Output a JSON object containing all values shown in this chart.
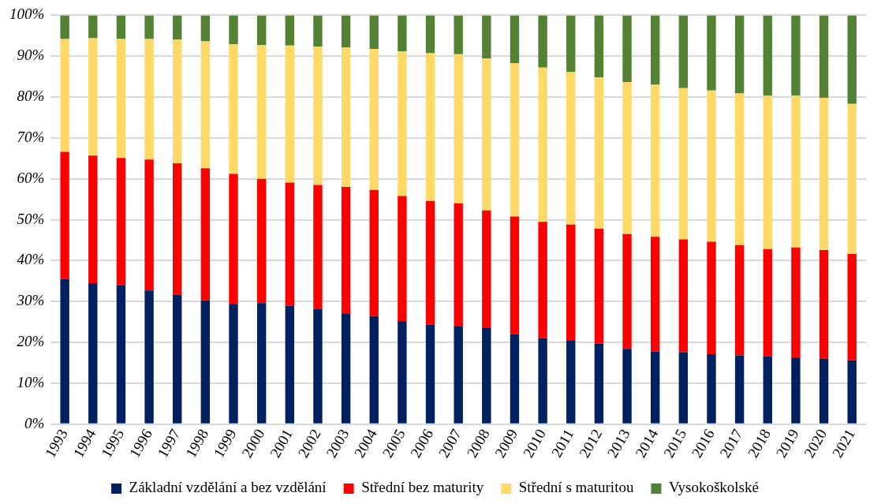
{
  "chart_data": {
    "type": "bar",
    "stacked": true,
    "categories": [
      "1993",
      "1994",
      "1995",
      "1996",
      "1997",
      "1998",
      "1999",
      "2000",
      "2001",
      "2002",
      "2003",
      "2004",
      "2005",
      "2006",
      "2007",
      "2008",
      "2009",
      "2010",
      "2011",
      "2012",
      "2013",
      "2014",
      "2015",
      "2016",
      "2017",
      "2018",
      "2019",
      "2020",
      "2021"
    ],
    "series": [
      {
        "name": "Základní vzdělání a bez vzdělání",
        "color": "#002060",
        "values": [
          35.5,
          34.5,
          34.0,
          32.7,
          31.7,
          30.3,
          29.4,
          29.6,
          29.0,
          28.2,
          27.1,
          26.4,
          25.2,
          24.3,
          24.0,
          23.6,
          22.0,
          21.0,
          20.4,
          19.7,
          18.4,
          17.8,
          17.6,
          17.1,
          16.8,
          16.6,
          16.3,
          16.0,
          15.6
        ]
      },
      {
        "name": "Střední bez maturity",
        "color": "#ff0000",
        "values": [
          31.1,
          31.2,
          31.1,
          32.0,
          32.1,
          32.3,
          31.8,
          30.4,
          30.1,
          30.3,
          30.9,
          30.9,
          30.6,
          30.3,
          30.0,
          28.7,
          28.8,
          28.5,
          28.4,
          28.1,
          28.1,
          28.0,
          27.6,
          27.5,
          27.0,
          26.2,
          26.9,
          26.6,
          26.0
        ]
      },
      {
        "name": "Střední s maturitou",
        "color": "#ffd966",
        "values": [
          27.6,
          28.7,
          29.1,
          29.5,
          30.3,
          31.0,
          31.7,
          32.7,
          33.5,
          33.8,
          34.1,
          34.5,
          35.4,
          36.1,
          36.5,
          37.1,
          37.5,
          37.7,
          37.3,
          37.0,
          37.2,
          37.2,
          37.0,
          37.0,
          37.1,
          37.5,
          37.2,
          37.2,
          36.7
        ]
      },
      {
        "name": "Vysokoškolské",
        "color": "#548235",
        "values": [
          5.8,
          5.6,
          5.8,
          5.8,
          5.9,
          6.4,
          7.1,
          7.3,
          7.4,
          7.7,
          7.9,
          8.2,
          8.8,
          9.3,
          9.5,
          10.6,
          11.7,
          12.8,
          13.9,
          15.2,
          16.3,
          17.0,
          17.8,
          18.4,
          19.1,
          19.7,
          19.6,
          20.2,
          21.7
        ]
      }
    ],
    "ylim": [
      0,
      100
    ],
    "yticks": [
      {
        "value": 0,
        "label": "0%"
      },
      {
        "value": 10,
        "label": "10%"
      },
      {
        "value": 20,
        "label": "20%"
      },
      {
        "value": 30,
        "label": "30%"
      },
      {
        "value": 40,
        "label": "40%"
      },
      {
        "value": 50,
        "label": "50%"
      },
      {
        "value": 60,
        "label": "60%"
      },
      {
        "value": 70,
        "label": "70%"
      },
      {
        "value": 80,
        "label": "80%"
      },
      {
        "value": 90,
        "label": "90%"
      },
      {
        "value": 100,
        "label": "100%"
      }
    ],
    "grid": "y",
    "legend": "bottom"
  }
}
